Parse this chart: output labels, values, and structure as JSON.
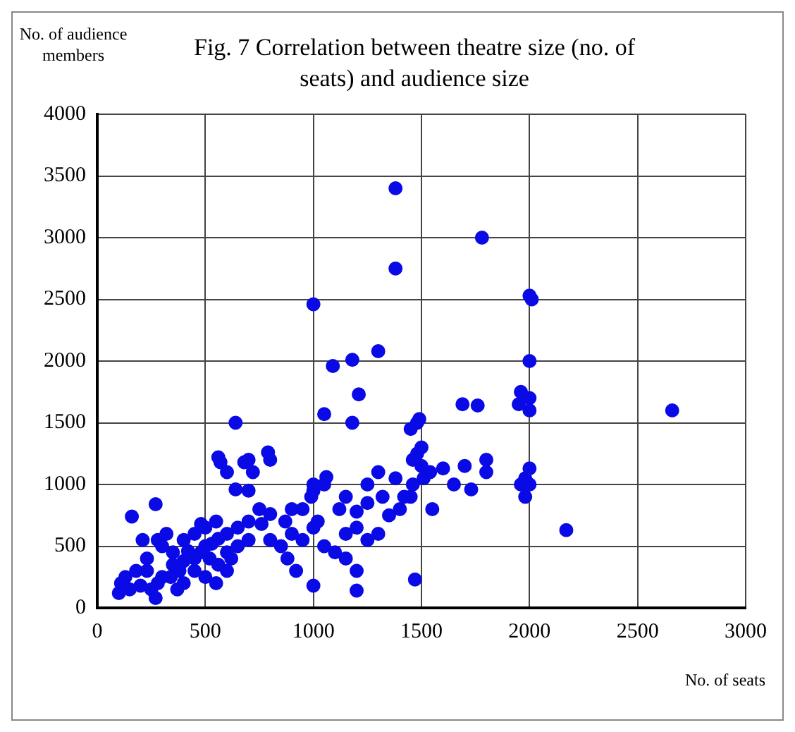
{
  "chart_data": {
    "type": "scatter",
    "title": "Fig. 7 Correlation between theatre size (no. of seats) and audience size",
    "xlabel": "No. of seats",
    "ylabel": "No. of audience members",
    "xlim": [
      0,
      3000
    ],
    "ylim": [
      0,
      4000
    ],
    "xticks": [
      0,
      500,
      1000,
      1500,
      2000,
      2500,
      3000
    ],
    "yticks": [
      0,
      500,
      1000,
      1500,
      2000,
      2500,
      3000,
      3500,
      4000
    ],
    "grid": true,
    "marker": "circle",
    "series": [
      {
        "color": "#0a0ae6",
        "x": [
          1380,
          1380,
          1780,
          1000,
          2000,
          2010,
          2000,
          1960,
          1950,
          2000,
          2000,
          2660,
          2170,
          1690,
          1760,
          1300,
          1180,
          1090,
          1210,
          1050,
          1180,
          1480,
          1450,
          1490,
          640,
          1980,
          2000,
          1980,
          1960,
          2000,
          1800,
          1800,
          1700,
          1650,
          1730,
          1600,
          1540,
          1500,
          1510,
          1460,
          1450,
          1480,
          1500,
          1460,
          1550,
          1470,
          1200,
          1000,
          1320,
          1250,
          1300,
          1380,
          1250,
          1200,
          1120,
          1150,
          1060,
          1000,
          990,
          1020,
          950,
          900,
          870,
          920,
          880,
          800,
          790,
          700,
          720,
          680,
          570,
          560,
          600,
          640,
          700,
          750,
          800,
          760,
          700,
          650,
          600,
          560,
          530,
          500,
          480,
          450,
          420,
          400,
          380,
          350,
          300,
          280,
          250,
          200,
          150,
          100,
          110,
          130,
          180,
          230,
          280,
          300,
          320,
          270,
          160,
          210,
          400,
          450,
          500,
          550,
          480,
          520,
          560,
          600,
          450,
          400,
          370,
          270,
          500,
          620,
          650,
          700,
          1100,
          1150,
          1200,
          1250,
          1000,
          1050,
          950,
          850,
          800,
          900,
          1200,
          1150,
          1300,
          1350,
          1400,
          1420,
          1000,
          1050,
          600,
          550,
          350,
          340,
          230
        ],
        "values": [
          3400,
          2750,
          3000,
          2460,
          2530,
          2500,
          2000,
          1750,
          1650,
          1700,
          1600,
          1600,
          630,
          1650,
          1640,
          2080,
          2010,
          1960,
          1730,
          1570,
          1500,
          1500,
          1450,
          1530,
          1500,
          1050,
          1130,
          900,
          1000,
          1000,
          1200,
          1100,
          1150,
          1000,
          960,
          1130,
          1100,
          1150,
          1050,
          1000,
          900,
          1250,
          1300,
          1200,
          800,
          230,
          140,
          180,
          900,
          1000,
          1100,
          1050,
          850,
          780,
          800,
          900,
          1060,
          950,
          900,
          700,
          800,
          800,
          700,
          300,
          400,
          1200,
          1260,
          1200,
          1100,
          1180,
          1180,
          1220,
          1100,
          960,
          950,
          800,
          760,
          680,
          700,
          650,
          600,
          560,
          520,
          500,
          450,
          400,
          460,
          380,
          300,
          350,
          250,
          200,
          150,
          180,
          150,
          120,
          200,
          250,
          300,
          400,
          550,
          500,
          600,
          840,
          740,
          550,
          550,
          600,
          650,
          700,
          680,
          400,
          350,
          450,
          300,
          200,
          150,
          80,
          250,
          400,
          500,
          550,
          450,
          600,
          650,
          550,
          650,
          500,
          550,
          500,
          550,
          600,
          300,
          400,
          600,
          750,
          800,
          900,
          1000,
          1000,
          300,
          200,
          450,
          250,
          300
        ]
      }
    ]
  }
}
